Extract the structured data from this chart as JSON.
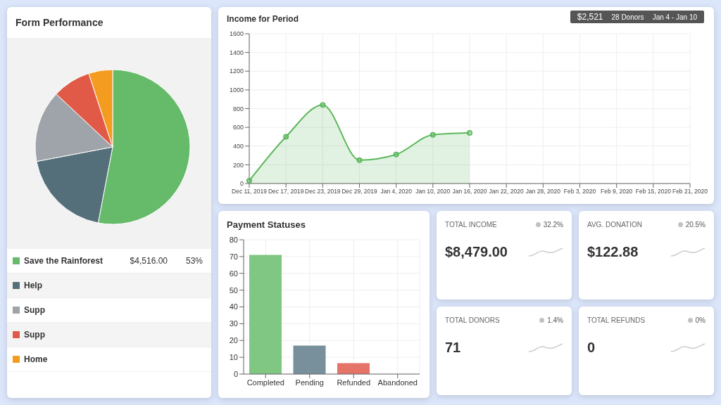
{
  "chart_data": [
    {
      "type": "pie",
      "title": "Form Performance",
      "categories": [
        "Save the Rainforest",
        "Help",
        "Supp",
        "Supp",
        "Home"
      ],
      "values": [
        53,
        19,
        15,
        8,
        5
      ],
      "colors": [
        "#66bb6a",
        "#546e7a",
        "#9ea4a9",
        "#e05a47",
        "#f39c1f"
      ],
      "value_labels": [
        "53%",
        null,
        null,
        null,
        null
      ],
      "annotations": [
        "$4,516.00"
      ],
      "legend": "bottom"
    },
    {
      "type": "area",
      "title": "Income for Period",
      "categories": [
        "Dec 11, 2019",
        "Dec 17, 2019",
        "Dec 23, 2019",
        "Dec 29, 2019",
        "Jan 4, 2020",
        "Jan 10, 2020",
        "Jan 16, 2020",
        "Jan 22, 2020",
        "Jan 28, 2020",
        "Feb 3, 2020",
        "Feb 9, 2020",
        "Feb 15, 2020",
        "Feb 21, 2020"
      ],
      "series": [
        {
          "color": "#5cb85c",
          "values": [
            30,
            500,
            840,
            250,
            310,
            520,
            540,
            null,
            null,
            null,
            null,
            null,
            null
          ]
        }
      ],
      "ylim": [
        0,
        1600
      ],
      "yticks": [
        0,
        200,
        400,
        600,
        800,
        1000,
        1200,
        1400,
        1600
      ],
      "grid": true,
      "marker": "circle",
      "annotations": [
        "$2,521",
        "28 Donors",
        "Jan 4 - Jan 10"
      ]
    },
    {
      "type": "bar",
      "title": "Payment Statuses",
      "categories": [
        "Completed",
        "Pending",
        "Refunded",
        "Abandoned"
      ],
      "values": [
        71,
        17,
        6.5,
        0
      ],
      "colors": [
        "#81c784",
        "#78909c",
        "#e57368",
        "#bbbbbb"
      ],
      "ylim": [
        0,
        80
      ],
      "yticks": [
        0,
        10,
        20,
        30,
        40,
        50,
        60,
        70,
        80
      ],
      "grid": true
    },
    {
      "type": "other",
      "categories": [
        "TOTAL INCOME",
        "AVG. DONATION",
        "TOTAL DONORS",
        "TOTAL REFUNDS"
      ],
      "value_labels": [
        "$8,479.00",
        "$122.88",
        "71",
        "0"
      ],
      "annotations": [
        "32.2%",
        "20.5%",
        "1.4%",
        "0%"
      ]
    }
  ]
}
